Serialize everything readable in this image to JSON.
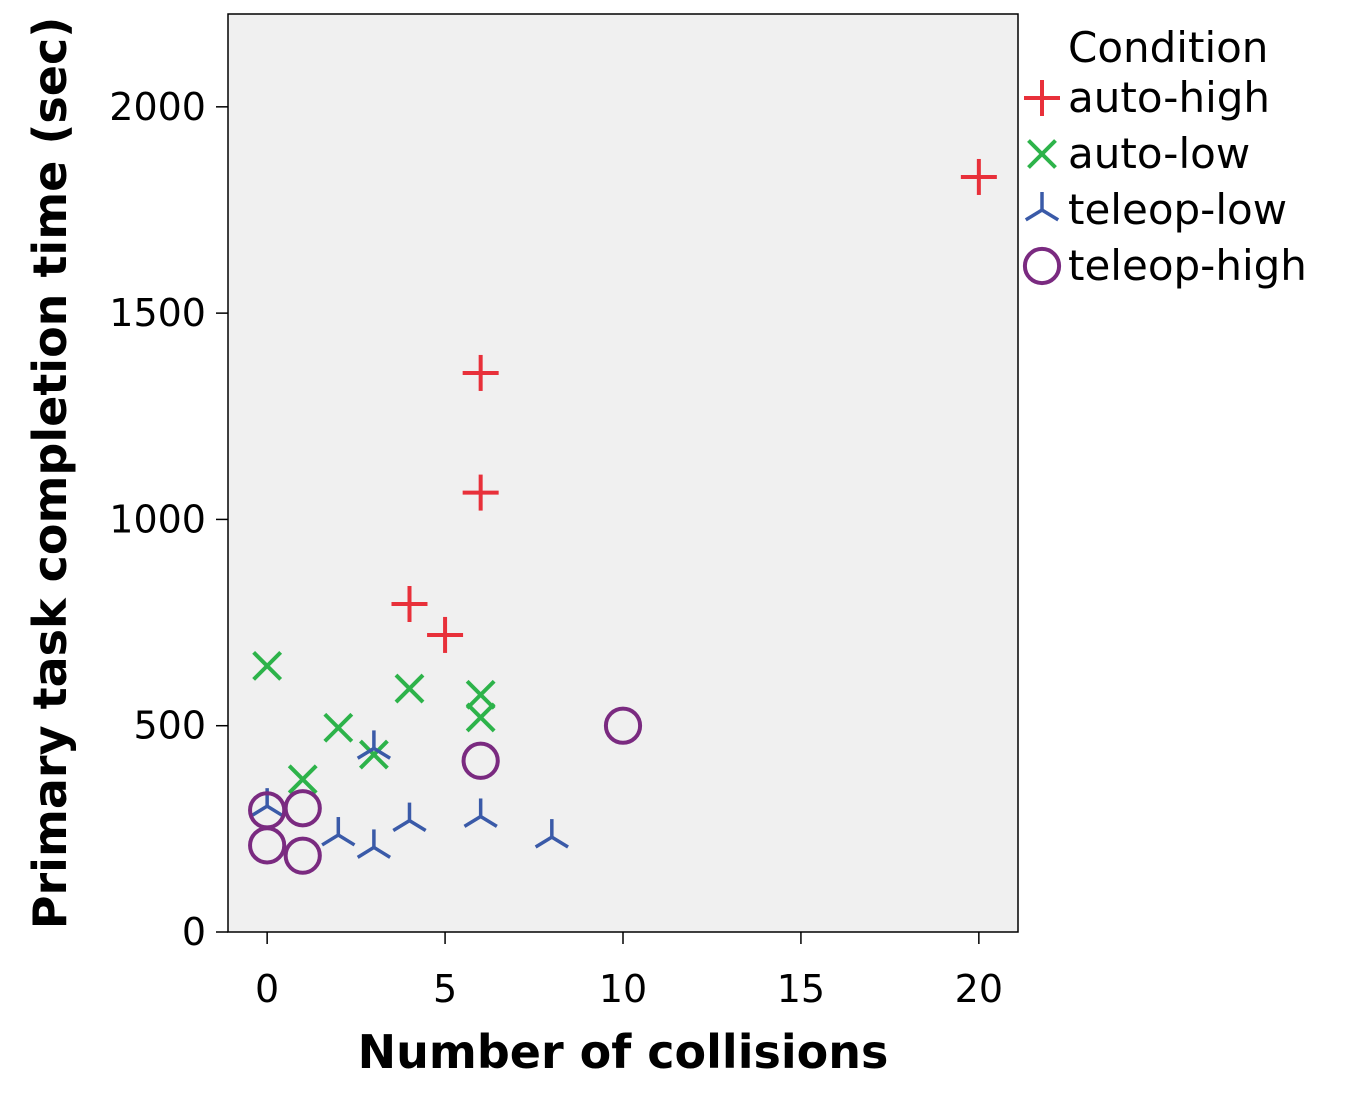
{
  "chart_data": {
    "type": "scatter",
    "title": "",
    "xlabel": "Number of collisions",
    "ylabel": "Primary task completion time (sec)",
    "xlim": [
      -1.1,
      21.1
    ],
    "ylim": [
      0,
      2225
    ],
    "xticks": [
      "0",
      "5",
      "10",
      "15",
      "20"
    ],
    "yticks": [
      "0",
      "500",
      "1000",
      "1500",
      "2000"
    ],
    "grid": false,
    "legend": {
      "title": "Condition",
      "placement": "right"
    },
    "plot_background": "#f0f0f0",
    "series": [
      {
        "name": "auto-high",
        "marker": "plus",
        "color": "#e8303a",
        "points": [
          [
            4,
            795
          ],
          [
            5,
            720
          ],
          [
            6,
            1065
          ],
          [
            6,
            1355
          ],
          [
            20,
            1830
          ]
        ]
      },
      {
        "name": "auto-low",
        "marker": "x",
        "color": "#2db34a",
        "points": [
          [
            0,
            645
          ],
          [
            1,
            370
          ],
          [
            2,
            495
          ],
          [
            3,
            430
          ],
          [
            4,
            590
          ],
          [
            6,
            575
          ],
          [
            6,
            520
          ]
        ]
      },
      {
        "name": "teleop-low",
        "marker": "tri",
        "color": "#3a5aa8",
        "points": [
          [
            0,
            305
          ],
          [
            2,
            235
          ],
          [
            3,
            445
          ],
          [
            3,
            205
          ],
          [
            4,
            270
          ],
          [
            6,
            280
          ],
          [
            8,
            230
          ]
        ]
      },
      {
        "name": "teleop-high",
        "marker": "circle",
        "color": "#7a2a80",
        "points": [
          [
            0,
            295
          ],
          [
            0,
            210
          ],
          [
            1,
            300
          ],
          [
            1,
            185
          ],
          [
            6,
            415
          ],
          [
            10,
            500
          ]
        ]
      }
    ]
  }
}
